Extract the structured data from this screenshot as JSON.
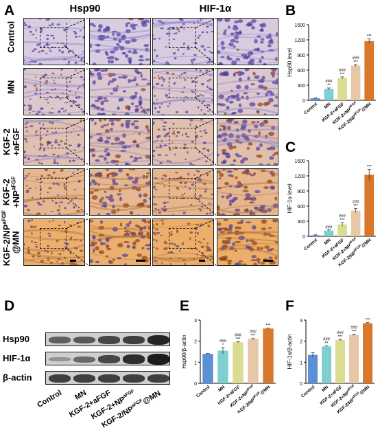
{
  "panels": {
    "A": "A",
    "B": "B",
    "C": "C",
    "D": "D",
    "E": "E",
    "F": "F"
  },
  "ihc": {
    "column_titles": [
      "Hsp90",
      "HIF-1α"
    ],
    "row_labels": [
      "Control",
      "MN",
      "KGF-2\n+aFGF",
      "KGF-2\n+NPaFGF",
      "KGF-2/NPaFGF\n@MN"
    ],
    "stain_levels": [
      0.05,
      0.2,
      0.45,
      0.7,
      1.0
    ]
  },
  "western": {
    "bands": [
      "Hsp90",
      "HIF-1α",
      "β-actin"
    ],
    "lanes": [
      "Control",
      "MN",
      "KGF-2+aFGF",
      "KGF-2+NPaFGF",
      "KGF-2/NPaFGF@MN"
    ]
  },
  "colors": {
    "bars": [
      "#5b8fd6",
      "#7fcfd2",
      "#d9dc91",
      "#e7c7a6",
      "#d9772c"
    ]
  },
  "chart_data": [
    {
      "id": "B",
      "type": "bar",
      "categories": [
        "Control",
        "MN",
        "KGF-2+aFGF",
        "KGF-2+NPaFGF",
        "KGF-2/NPaFGF@MN"
      ],
      "values": [
        40,
        225,
        445,
        690,
        1175
      ],
      "errors": [
        10,
        20,
        20,
        20,
        45
      ],
      "ylabel": "Hsp90 level",
      "ylim": [
        0,
        1500
      ],
      "yticks": [
        0,
        300,
        600,
        900,
        1200,
        1500
      ],
      "annotations": [
        "",
        "###\n**",
        "###\n***",
        "###\n***",
        "***"
      ]
    },
    {
      "id": "C",
      "type": "bar",
      "categories": [
        "Control",
        "MN",
        "KGF-2+aFGF",
        "KGF-2+NPaFGF",
        "KGF-2/NPaFGF@MN"
      ],
      "values": [
        20,
        115,
        235,
        510,
        1220
      ],
      "errors": [
        10,
        15,
        35,
        40,
        110
      ],
      "ylabel": "HIF-1α level",
      "ylim": [
        0,
        1500
      ],
      "yticks": [
        0,
        300,
        600,
        900,
        1200,
        1500
      ],
      "annotations": [
        "",
        "###",
        "###\n***",
        "###\n***",
        "***"
      ]
    },
    {
      "id": "E",
      "type": "bar",
      "categories": [
        "Control",
        "MN",
        "KGF-2+aFGF",
        "KGF-2+NPaFGF",
        "KGF-2/NPaFGF@MN"
      ],
      "values": [
        1.4,
        1.55,
        1.95,
        2.1,
        2.6
      ],
      "errors": [
        0.02,
        0.15,
        0.03,
        0.03,
        0.02
      ],
      "ylabel": "Hsp90/β-actin",
      "ylim": [
        0,
        3
      ],
      "yticks": [
        0,
        1,
        2,
        3
      ],
      "annotations": [
        "",
        "###\n*",
        "###\n***",
        "###\n***",
        "***"
      ]
    },
    {
      "id": "F",
      "type": "bar",
      "categories": [
        "Control",
        "MN",
        "KGF-2+aFGF",
        "KGF-2+NPaFGF",
        "KGF-2/NPaFGF@MN"
      ],
      "values": [
        1.35,
        1.75,
        2.05,
        2.3,
        2.85
      ],
      "errors": [
        0.1,
        0.03,
        0.03,
        0.03,
        0.03
      ],
      "ylabel": "HIF-1α/β-actin",
      "ylim": [
        0,
        3
      ],
      "yticks": [
        0,
        1,
        2,
        3
      ],
      "annotations": [
        "",
        "###\n**",
        "###\n***",
        "###\n***",
        "***"
      ]
    }
  ]
}
